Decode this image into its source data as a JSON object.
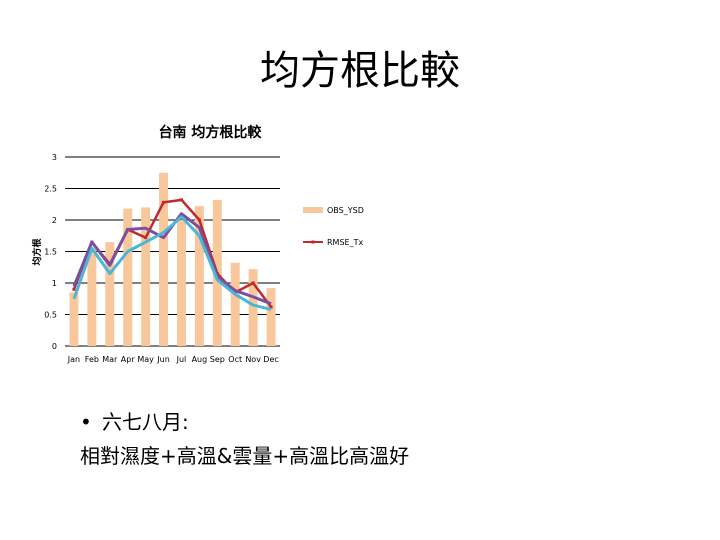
{
  "slide": {
    "title": "均方根比較",
    "bullet_line1": "六七八月:",
    "bullet_line2": "相對濕度+高溫&雲量+高溫比高溫好"
  },
  "colors": {
    "bars": "#f9c79c",
    "rmse_tx": "#c0282c",
    "series_purple": "#7b4fa0",
    "series_blue": "#4bb6d6",
    "grid": "#000000"
  },
  "chart_data": {
    "type": "bar",
    "title": "台南 均方根比較",
    "ylabel": "均方根",
    "ylim": [
      0,
      3
    ],
    "yticks": [
      "0",
      "0.5",
      "1",
      "1.5",
      "2",
      "2.5",
      "3"
    ],
    "categories": [
      "Jan",
      "Feb",
      "Mar",
      "Apr",
      "May",
      "Jun",
      "Jul",
      "Aug",
      "Sep",
      "Oct",
      "Nov",
      "Dec"
    ],
    "grid": true,
    "legend_position": "right",
    "series": [
      {
        "name": "OBS_YSD",
        "kind": "bar",
        "values": [
          0.85,
          1.55,
          1.65,
          2.18,
          2.2,
          2.75,
          2.0,
          2.22,
          2.32,
          1.32,
          1.22,
          0.92
        ]
      },
      {
        "name": "RMSE_Tx",
        "kind": "line",
        "values": [
          0.9,
          1.65,
          1.3,
          1.85,
          1.72,
          2.28,
          2.32,
          2.0,
          1.15,
          0.85,
          1.0,
          0.62
        ]
      },
      {
        "kind": "line",
        "values": [
          0.95,
          1.65,
          1.28,
          1.85,
          1.87,
          1.72,
          2.1,
          1.88,
          1.1,
          0.88,
          0.78,
          0.67
        ]
      },
      {
        "kind": "line",
        "values": [
          0.75,
          1.55,
          1.15,
          1.5,
          1.65,
          1.8,
          2.05,
          1.75,
          1.05,
          0.82,
          0.65,
          0.58
        ]
      }
    ]
  }
}
